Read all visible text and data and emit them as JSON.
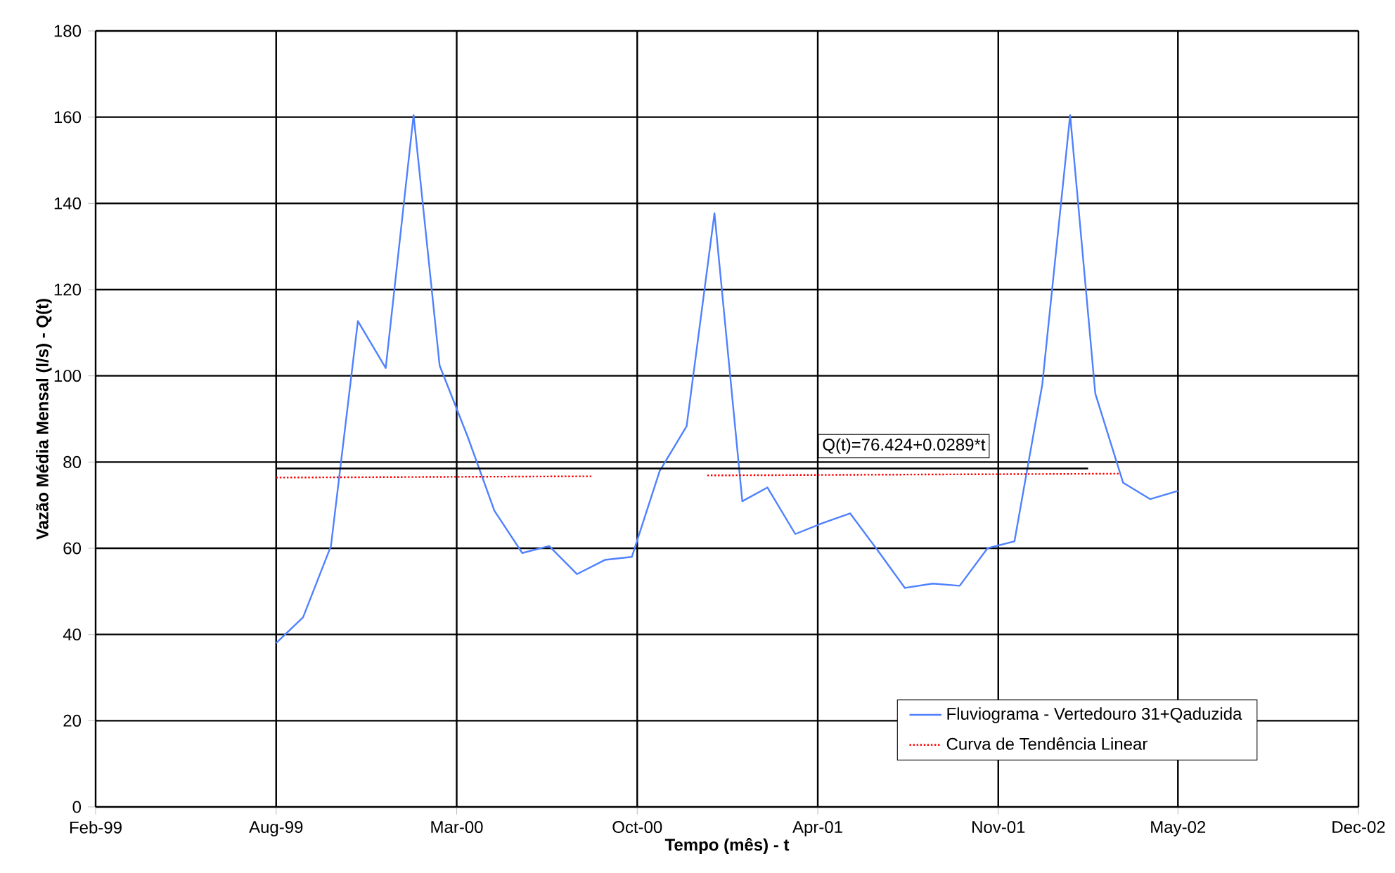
{
  "chart_data": {
    "type": "line",
    "xlabel": "Tempo (mês) - t",
    "ylabel": "Vazão Média Mensal (l/s) - Q(t)",
    "annotations": [
      "Q(t)=76.424+0.0289*t"
    ],
    "xlim": [
      "1999-02-11",
      "2002-12-18"
    ],
    "xticks": [
      {
        "value": "1999-02-11",
        "label": "Feb-99"
      },
      {
        "value": "1999-08-31",
        "label": "Aug-99"
      },
      {
        "value": "2000-03-19",
        "label": "Mar-00"
      },
      {
        "value": "2000-10-06",
        "label": "Oct-00"
      },
      {
        "value": "2001-04-25",
        "label": "Apr-01"
      },
      {
        "value": "2001-11-12",
        "label": "Nov-01"
      },
      {
        "value": "2002-05-31",
        "label": "May-02"
      },
      {
        "value": "2002-12-18",
        "label": "Dec-02"
      }
    ],
    "ylim": [
      0,
      180
    ],
    "yticks": [
      0,
      20,
      40,
      60,
      80,
      100,
      120,
      140,
      160,
      180
    ],
    "grid": true,
    "legend": "bottom right",
    "marker": "none",
    "series": [
      {
        "name": "Fluviograma - Vertedouro 31+Qaduzida",
        "color": "#4f81ff",
        "line_style": "solid",
        "x": [
          "1999-08-31",
          "1999-09-30",
          "1999-10-31",
          "1999-11-30",
          "1999-12-31",
          "2000-01-31",
          "2000-02-29",
          "2000-03-31",
          "2000-04-30",
          "2000-05-31",
          "2000-06-30",
          "2000-07-31",
          "2000-08-31",
          "2000-09-30",
          "2000-10-31",
          "2000-11-30",
          "2000-12-31",
          "2001-01-31",
          "2001-02-28",
          "2001-03-31",
          "2001-04-30",
          "2001-05-31",
          "2001-06-30",
          "2001-07-31",
          "2001-08-31",
          "2001-09-30",
          "2001-10-31",
          "2001-11-30",
          "2001-12-31",
          "2002-01-31",
          "2002-02-28",
          "2002-03-31",
          "2002-04-30",
          "2002-05-31"
        ],
        "values": [
          38,
          44,
          60.5,
          112.7,
          101.8,
          160.5,
          102.4,
          86,
          68.7,
          58.9,
          60.5,
          54,
          57.3,
          58,
          77.9,
          88.3,
          137.7,
          70.9,
          74.1,
          63.3,
          65.8,
          68.1,
          59.7,
          50.8,
          51.8,
          51.3,
          60,
          61.6,
          98,
          160.5,
          95.9,
          75.2,
          71.4,
          73.3
        ]
      },
      {
        "color": "#000000",
        "line_style": "solid",
        "x": [
          "1999-08-31",
          "2002-02-20"
        ],
        "values": [
          78.5,
          78.5
        ]
      },
      {
        "name": "Curva de Tendência Linear",
        "color": "#ff0000",
        "line_style": "dotted",
        "x": [
          "1999-08-31",
          "2000-08-18",
          "2000-10-20",
          "2000-12-23",
          "2002-03-26"
        ],
        "values": [
          76.4,
          76.7,
          null,
          76.9,
          77.3
        ]
      }
    ]
  }
}
